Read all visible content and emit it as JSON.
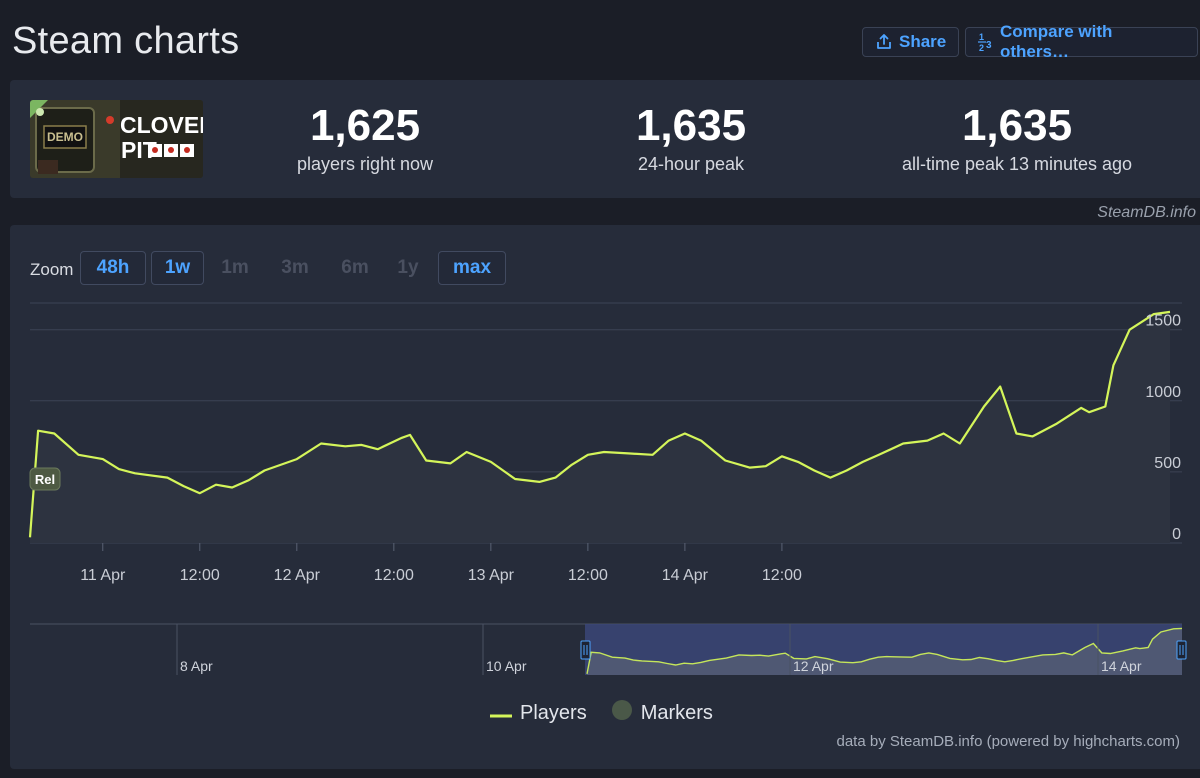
{
  "header": {
    "title": "Steam charts",
    "share_label": "Share",
    "compare_label": "Compare with others…"
  },
  "game": {
    "logo_badge": "DEMO",
    "logo_title_1": "CLOVER",
    "logo_title_2": "PIT"
  },
  "stats": [
    {
      "value": "1,625",
      "label": "players right now"
    },
    {
      "value": "1,635",
      "label": "24-hour peak"
    },
    {
      "value": "1,635",
      "label": "all-time peak 13 minutes ago"
    }
  ],
  "credit_top": "SteamDB.info",
  "zoom": {
    "label": "Zoom",
    "options": [
      {
        "label": "48h",
        "enabled": true
      },
      {
        "label": "1w",
        "enabled": true
      },
      {
        "label": "1m",
        "enabled": false
      },
      {
        "label": "3m",
        "enabled": false
      },
      {
        "label": "6m",
        "enabled": false
      },
      {
        "label": "1y",
        "enabled": false
      },
      {
        "label": "max",
        "enabled": true
      }
    ]
  },
  "chart_data": {
    "type": "line",
    "series": [
      {
        "name": "Players",
        "color": "#d4f55a",
        "points": [
          [
            "2025-04-10 15:00",
            40
          ],
          [
            "2025-04-10 16:00",
            790
          ],
          [
            "2025-04-10 18:00",
            770
          ],
          [
            "2025-04-10 21:00",
            620
          ],
          [
            "2025-04-11 00:00",
            590
          ],
          [
            "2025-04-11 02:00",
            520
          ],
          [
            "2025-04-11 04:00",
            490
          ],
          [
            "2025-04-11 08:00",
            460
          ],
          [
            "2025-04-11 10:00",
            400
          ],
          [
            "2025-04-11 12:00",
            350
          ],
          [
            "2025-04-11 14:00",
            410
          ],
          [
            "2025-04-11 16:00",
            390
          ],
          [
            "2025-04-11 18:00",
            440
          ],
          [
            "2025-04-11 20:00",
            510
          ],
          [
            "2025-04-12 00:00",
            590
          ],
          [
            "2025-04-12 03:00",
            700
          ],
          [
            "2025-04-12 06:00",
            680
          ],
          [
            "2025-04-12 08:00",
            690
          ],
          [
            "2025-04-12 10:00",
            660
          ],
          [
            "2025-04-12 13:00",
            740
          ],
          [
            "2025-04-12 14:00",
            760
          ],
          [
            "2025-04-12 16:00",
            580
          ],
          [
            "2025-04-12 19:00",
            560
          ],
          [
            "2025-04-12 21:00",
            640
          ],
          [
            "2025-04-13 00:00",
            570
          ],
          [
            "2025-04-13 03:00",
            450
          ],
          [
            "2025-04-13 06:00",
            430
          ],
          [
            "2025-04-13 08:00",
            460
          ],
          [
            "2025-04-13 10:00",
            550
          ],
          [
            "2025-04-13 12:00",
            620
          ],
          [
            "2025-04-13 14:00",
            640
          ],
          [
            "2025-04-13 17:00",
            630
          ],
          [
            "2025-04-13 20:00",
            620
          ],
          [
            "2025-04-13 22:00",
            720
          ],
          [
            "2025-04-14 00:00",
            770
          ],
          [
            "2025-04-14 02:00",
            720
          ],
          [
            "2025-04-14 05:00",
            580
          ],
          [
            "2025-04-14 08:00",
            530
          ],
          [
            "2025-04-14 10:00",
            540
          ],
          [
            "2025-04-14 12:00",
            610
          ],
          [
            "2025-04-14 14:00",
            570
          ],
          [
            "2025-04-14 16:00",
            510
          ],
          [
            "2025-04-14 18:00",
            460
          ],
          [
            "2025-04-14 20:00",
            510
          ],
          [
            "2025-04-14 22:00",
            570
          ],
          [
            "2025-04-15 00:00",
            620
          ],
          [
            "2025-04-15 03:00",
            700
          ],
          [
            "2025-04-15 06:00",
            720
          ],
          [
            "2025-04-15 08:00",
            770
          ],
          [
            "2025-04-15 10:00",
            700
          ],
          [
            "2025-04-15 13:00",
            960
          ],
          [
            "2025-04-15 15:00",
            1100
          ],
          [
            "2025-04-15 17:00",
            770
          ],
          [
            "2025-04-15 19:00",
            750
          ],
          [
            "2025-04-15 22:00",
            840
          ],
          [
            "2025-04-16 01:00",
            950
          ],
          [
            "2025-04-16 02:00",
            920
          ],
          [
            "2025-04-16 04:00",
            960
          ],
          [
            "2025-04-16 05:00",
            1250
          ],
          [
            "2025-04-16 07:00",
            1500
          ],
          [
            "2025-04-16 10:00",
            1610
          ],
          [
            "2025-04-16 12:00",
            1625
          ]
        ]
      },
      {
        "name": "Markers",
        "color": "#4a5848",
        "points": []
      }
    ],
    "x_tick_labels": [
      "11 Apr",
      "12:00",
      "12 Apr",
      "12:00",
      "13 Apr",
      "12:00",
      "14 Apr",
      "12:00"
    ],
    "y_tick_labels": [
      "0",
      "500",
      "1000",
      "1500"
    ],
    "ylim": [
      0,
      1500
    ],
    "annotations": [
      {
        "label": "Rel",
        "x": "2025-04-10 15:00"
      }
    ],
    "navigator_tick_labels": [
      "8 Apr",
      "10 Apr",
      "12 Apr",
      "14 Apr"
    ],
    "grid": true,
    "legend_position": "bottom"
  },
  "legend": {
    "players": "Players",
    "markers": "Markers"
  },
  "credit_bottom": "data by SteamDB.info (powered by highcharts.com)"
}
